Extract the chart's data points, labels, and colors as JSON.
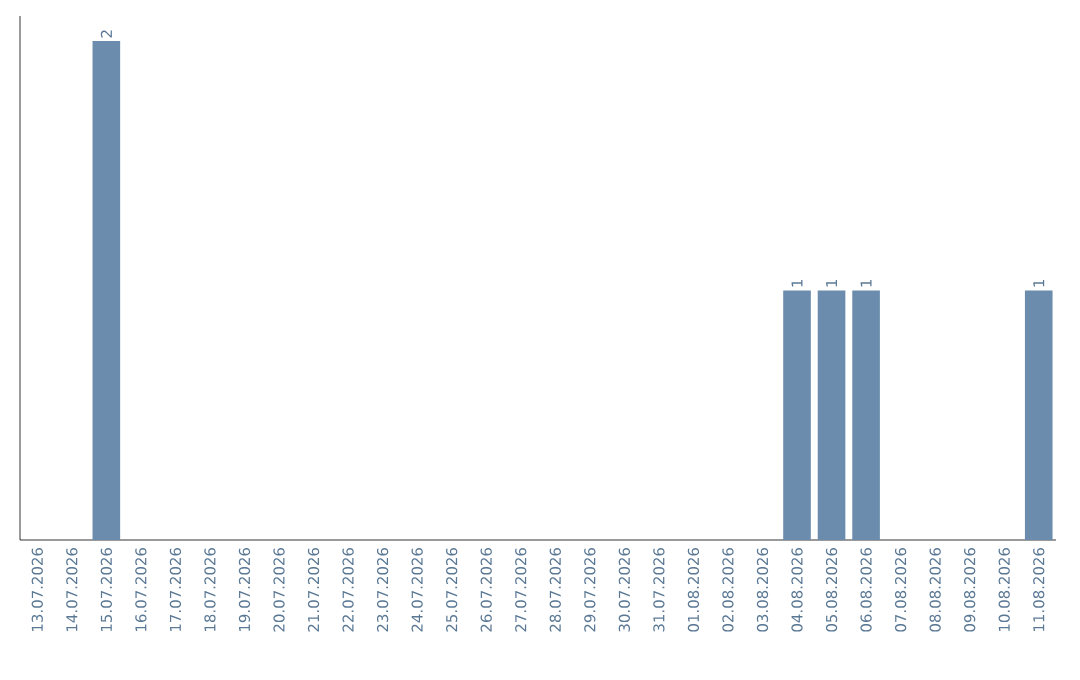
{
  "chart_data": {
    "type": "bar",
    "categories": [
      "13.07.2026",
      "14.07.2026",
      "15.07.2026",
      "16.07.2026",
      "17.07.2026",
      "18.07.2026",
      "19.07.2026",
      "20.07.2026",
      "21.07.2026",
      "22.07.2026",
      "23.07.2026",
      "24.07.2026",
      "25.07.2026",
      "26.07.2026",
      "27.07.2026",
      "28.07.2026",
      "29.07.2026",
      "30.07.2026",
      "31.07.2026",
      "01.08.2026",
      "02.08.2026",
      "03.08.2026",
      "04.08.2026",
      "05.08.2026",
      "06.08.2026",
      "07.08.2026",
      "08.08.2026",
      "09.08.2026",
      "10.08.2026",
      "11.08.2026"
    ],
    "values": [
      0,
      0,
      2,
      0,
      0,
      0,
      0,
      0,
      0,
      0,
      0,
      0,
      0,
      0,
      0,
      0,
      0,
      0,
      0,
      0,
      0,
      0,
      1,
      1,
      1,
      0,
      0,
      0,
      0,
      1
    ],
    "value_labels": [
      null,
      null,
      "2",
      null,
      null,
      null,
      null,
      null,
      null,
      null,
      null,
      null,
      null,
      null,
      null,
      null,
      null,
      null,
      null,
      null,
      null,
      null,
      "1",
      "1",
      "1",
      null,
      null,
      null,
      null,
      "1"
    ],
    "color": "#6b8cac",
    "ylim": [
      0,
      2.1
    ],
    "tick_labels": "x"
  }
}
